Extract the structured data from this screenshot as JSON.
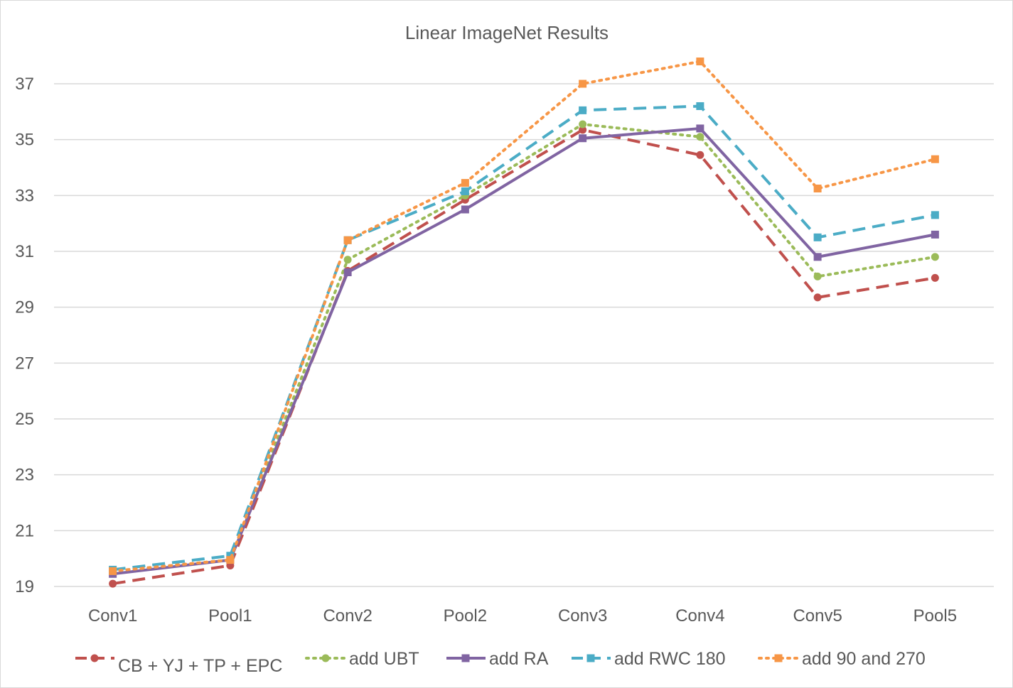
{
  "chart_data": {
    "type": "line",
    "title": "Linear ImageNet Results",
    "xlabel": "",
    "ylabel": "",
    "categories": [
      "Conv1",
      "Pool1",
      "Conv2",
      "Pool2",
      "Conv3",
      "Conv4",
      "Conv5",
      "Pool5"
    ],
    "yticks": [
      19,
      21,
      23,
      25,
      27,
      29,
      31,
      33,
      35,
      37
    ],
    "ylim": [
      19,
      38.5
    ],
    "grid": true,
    "legend_position": "bottom",
    "series": [
      {
        "name": "CB + YJ + TP + EPC",
        "values": [
          19.1,
          19.75,
          30.3,
          32.85,
          35.35,
          34.45,
          29.35,
          30.05
        ],
        "color": "#c0504d",
        "dash": "18,10",
        "marker": "circle",
        "width": 4
      },
      {
        "name": "add UBT",
        "values": [
          19.55,
          19.95,
          30.7,
          33.0,
          35.55,
          35.1,
          30.1,
          30.8
        ],
        "color": "#9bbb59",
        "dash": "3,7",
        "marker": "circle",
        "width": 4
      },
      {
        "name": "add RA",
        "values": [
          19.45,
          19.95,
          30.25,
          32.5,
          35.05,
          35.4,
          30.8,
          31.6
        ],
        "color": "#8064a2",
        "dash": "",
        "marker": "square",
        "width": 4
      },
      {
        "name": "add RWC 180",
        "values": [
          19.6,
          20.1,
          31.4,
          33.15,
          36.05,
          36.2,
          31.5,
          32.3
        ],
        "color": "#4bacc6",
        "dash": "18,10",
        "marker": "square",
        "width": 4
      },
      {
        "name": "add 90 and 270",
        "values": [
          19.55,
          19.95,
          31.4,
          33.45,
          37.0,
          37.8,
          33.25,
          34.3
        ],
        "color": "#f79646",
        "dash": "3,7",
        "marker": "square",
        "width": 4
      }
    ]
  }
}
